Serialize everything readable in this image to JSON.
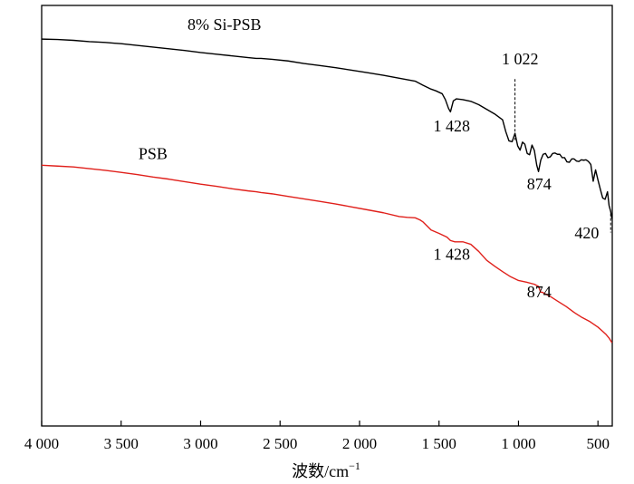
{
  "chart_data": {
    "type": "line",
    "xlabel": "波数/cm",
    "xlabel_sup": "−1",
    "x_reversed": true,
    "xlim": [
      4000,
      410
    ],
    "x_ticks": [
      4000,
      3500,
      3000,
      2500,
      2000,
      1500,
      1000,
      500
    ],
    "x_tick_labels": [
      "4 000",
      "3 500",
      "3 000",
      "2 500",
      "2 000",
      "1 500",
      "1 000",
      "500"
    ],
    "y_ticks_shown": false,
    "grid": false,
    "series": [
      {
        "name": "8% Si-PSB",
        "color": "#000000",
        "x": [
          4000,
          3900,
          3800,
          3700,
          3600,
          3500,
          3400,
          3300,
          3200,
          3100,
          3000,
          2900,
          2800,
          2700,
          2650,
          2620,
          2550,
          2450,
          2350,
          2250,
          2150,
          2050,
          1950,
          1850,
          1750,
          1650,
          1600,
          1550,
          1520,
          1480,
          1460,
          1440,
          1428,
          1410,
          1390,
          1350,
          1300,
          1250,
          1200,
          1150,
          1100,
          1080,
          1060,
          1040,
          1022,
          1005,
          990,
          975,
          960,
          945,
          930,
          915,
          900,
          885,
          874,
          860,
          845,
          830,
          815,
          800,
          785,
          770,
          755,
          740,
          725,
          710,
          695,
          680,
          665,
          650,
          635,
          620,
          605,
          590,
          575,
          560,
          545,
          530,
          515,
          500,
          485,
          470,
          455,
          440,
          430,
          420,
          412
        ],
        "y": [
          92.0,
          91.9,
          91.7,
          91.4,
          91.2,
          90.9,
          90.5,
          90.1,
          89.7,
          89.3,
          88.8,
          88.4,
          88.0,
          87.6,
          87.4,
          87.4,
          87.2,
          86.8,
          86.2,
          85.7,
          85.2,
          84.6,
          84.0,
          83.4,
          82.7,
          82.0,
          81.0,
          80.1,
          79.7,
          79.0,
          77.6,
          75.5,
          74.7,
          77.3,
          77.8,
          77.6,
          77.2,
          76.4,
          75.3,
          74.2,
          72.8,
          70.0,
          67.8,
          67.6,
          69.6,
          66.6,
          65.6,
          67.5,
          67.0,
          64.8,
          64.5,
          66.8,
          65.5,
          62.0,
          60.5,
          63.2,
          64.6,
          64.8,
          63.8,
          64.0,
          64.8,
          64.9,
          64.6,
          64.6,
          63.8,
          63.8,
          62.8,
          62.7,
          63.5,
          63.5,
          63.0,
          62.9,
          63.3,
          63.2,
          63.3,
          62.9,
          62.2,
          58.2,
          60.9,
          58.5,
          56.3,
          54.2,
          53.9,
          55.7,
          52.4,
          51.0,
          49.3
        ]
      },
      {
        "name": "PSB",
        "color": "#e0201b",
        "x": [
          4000,
          3900,
          3800,
          3700,
          3600,
          3500,
          3400,
          3300,
          3200,
          3100,
          3000,
          2900,
          2800,
          2700,
          2650,
          2620,
          2550,
          2450,
          2350,
          2250,
          2150,
          2050,
          1950,
          1850,
          1750,
          1700,
          1650,
          1620,
          1600,
          1550,
          1500,
          1450,
          1428,
          1400,
          1350,
          1300,
          1250,
          1200,
          1150,
          1100,
          1050,
          1000,
          950,
          900,
          874,
          860,
          850,
          800,
          750,
          700,
          650,
          600,
          550,
          500,
          470,
          450,
          430,
          412
        ],
        "y": [
          62.0,
          61.8,
          61.6,
          61.2,
          60.8,
          60.3,
          59.8,
          59.2,
          58.7,
          58.1,
          57.5,
          57.0,
          56.4,
          55.9,
          55.7,
          55.5,
          55.2,
          54.6,
          54.0,
          53.4,
          52.8,
          52.1,
          51.4,
          50.7,
          49.8,
          49.6,
          49.5,
          49.0,
          48.5,
          46.6,
          45.8,
          44.9,
          44.1,
          43.8,
          43.8,
          43.2,
          41.5,
          39.4,
          38.0,
          36.7,
          35.5,
          34.6,
          34.2,
          33.7,
          33.2,
          31.8,
          31.8,
          30.8,
          29.6,
          28.4,
          27.0,
          25.8,
          24.8,
          23.5,
          22.5,
          21.8,
          20.9,
          19.8
        ]
      }
    ],
    "annotations": [
      {
        "text": "8% Si-PSB",
        "x": 2850,
        "y": 94.2
      },
      {
        "text": "PSB",
        "x": 3300,
        "y": 63.5
      },
      {
        "text": "1 022",
        "x": 990,
        "y": 86.0
      },
      {
        "text": "1 428",
        "x": 1420,
        "y": 70.0
      },
      {
        "text": "874",
        "x": 870,
        "y": 56.2
      },
      {
        "text": "420",
        "x": 570,
        "y": 44.6
      },
      {
        "text": "1 428",
        "x": 1420,
        "y": 39.5
      },
      {
        "text": "874",
        "x": 870,
        "y": 30.6
      }
    ],
    "guide_lines": [
      {
        "x": 1022,
        "y_from": 82.5,
        "y_to": 68.0
      },
      {
        "x": 420,
        "y_from": 50.5,
        "y_to": 46.0
      }
    ]
  }
}
